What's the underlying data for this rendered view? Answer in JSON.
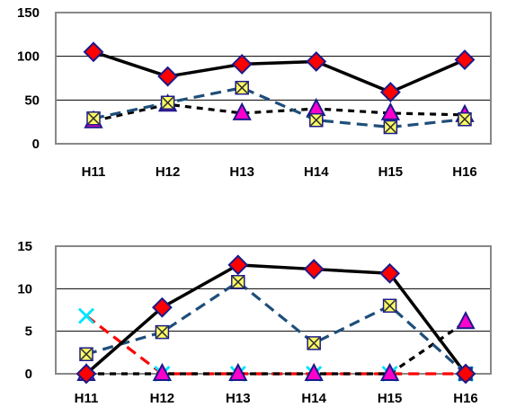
{
  "chart_data": [
    {
      "type": "line",
      "categories": [
        "H11",
        "H12",
        "H13",
        "H14",
        "H15",
        "H16"
      ],
      "ylim": [
        0,
        150
      ],
      "yticks": [
        0,
        50,
        100,
        150
      ],
      "grid": true,
      "series": [
        {
          "values": [
            105,
            77,
            91,
            94,
            59,
            96
          ],
          "color": "#000000",
          "dash": "solid",
          "marker": "diamond",
          "marker_fill": "#ff0000",
          "marker_stroke": "#1a1a8a"
        },
        {
          "values": [
            29,
            47,
            64,
            27,
            19,
            28
          ],
          "color": "#1f4e79",
          "dash": "long-dash",
          "marker": "x-square",
          "marker_fill": "#ffff66",
          "marker_stroke": "#1a1a8a"
        },
        {
          "values": [
            26,
            45,
            35,
            40,
            35,
            33
          ],
          "color": "#000000",
          "dash": "short-dash",
          "marker": "triangle",
          "marker_fill": "#ff00cc",
          "marker_stroke": "#1a1a8a"
        }
      ]
    },
    {
      "type": "line",
      "categories": [
        "H11",
        "H12",
        "H13",
        "H14",
        "H15",
        "H16"
      ],
      "ylim": [
        0,
        15
      ],
      "yticks": [
        0,
        5,
        10,
        15
      ],
      "grid": true,
      "series": [
        {
          "values": [
            0,
            7.8,
            12.8,
            12.3,
            11.8,
            0
          ],
          "color": "#000000",
          "dash": "solid",
          "marker": "diamond",
          "marker_fill": "#ff0000",
          "marker_stroke": "#1a1a8a"
        },
        {
          "values": [
            2.3,
            4.9,
            10.8,
            3.6,
            8.0,
            0
          ],
          "color": "#1f4e79",
          "dash": "long-dash",
          "marker": "x-square",
          "marker_fill": "#ffff66",
          "marker_stroke": "#1a1a8a"
        },
        {
          "values": [
            0,
            0,
            0,
            0,
            0,
            6.1
          ],
          "color": "#000000",
          "dash": "short-dash",
          "marker": "triangle",
          "marker_fill": "#ff00cc",
          "marker_stroke": "#1a1a8a"
        },
        {
          "values": [
            6.8,
            0,
            0,
            0,
            0,
            0
          ],
          "color": "#ff0000",
          "dash": "long-dash",
          "marker": "cross",
          "marker_fill": "#00e5ff",
          "marker_stroke": "#00e5ff"
        }
      ]
    }
  ]
}
